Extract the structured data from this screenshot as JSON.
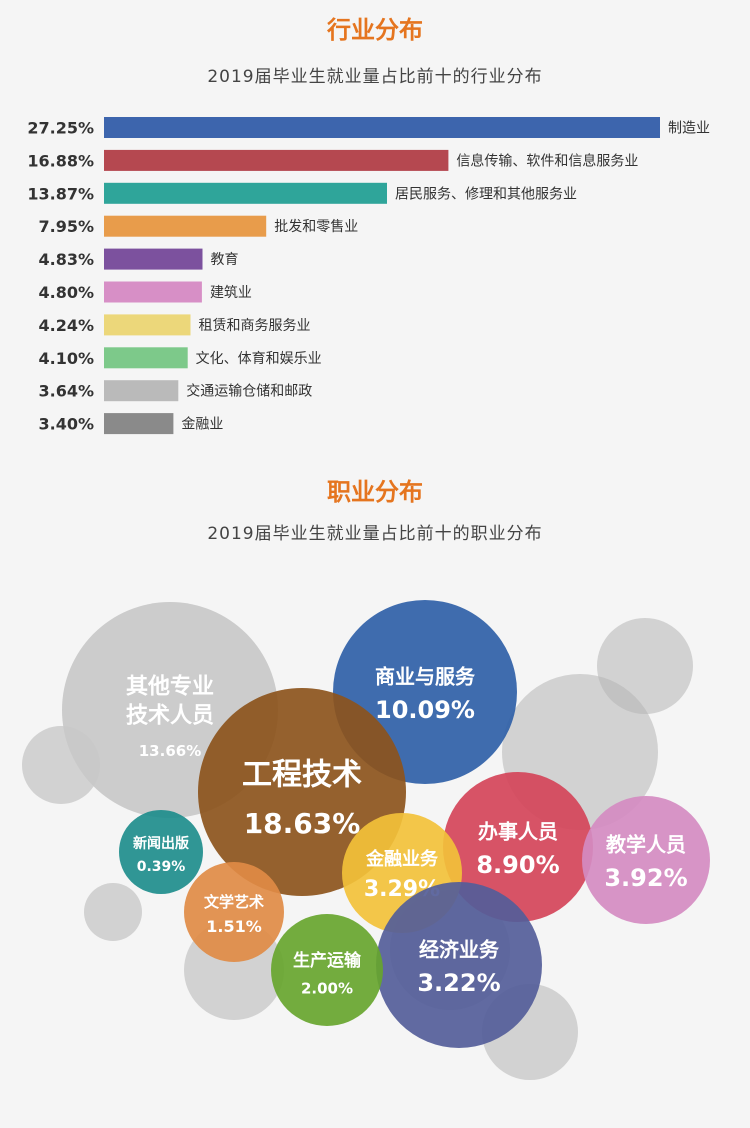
{
  "industry": {
    "title": "行业分布",
    "subtitle": "2019届毕业生就业量占比前十的行业分布"
  },
  "occupation": {
    "title": "职业分布",
    "subtitle": "2019届毕业生就业量占比前十的职业分布"
  },
  "chart_data": [
    {
      "type": "bar",
      "orientation": "horizontal",
      "categories": [
        "制造业",
        "信息传输、软件和信息服务业",
        "居民服务、修理和其他服务业",
        "批发和零售业",
        "教育",
        "建筑业",
        "租赁和商务服务业",
        "文化、体育和娱乐业",
        "交通运输仓储和邮政",
        "金融业"
      ],
      "values": [
        27.25,
        16.88,
        13.87,
        7.95,
        4.83,
        4.8,
        4.24,
        4.1,
        3.64,
        3.4
      ],
      "value_labels": [
        "27.25%",
        "16.88%",
        "13.87%",
        "7.95%",
        "4.83%",
        "4.80%",
        "4.24%",
        "4.10%",
        "3.64%",
        "3.40%"
      ],
      "colors": [
        "#3d65ad",
        "#b54850",
        "#2fa59a",
        "#e89c4b",
        "#7c519e",
        "#d78fc6",
        "#ecd77a",
        "#7dc98a",
        "#bababa",
        "#8a8a8a"
      ],
      "title": "2019届毕业生就业量占比前十的行业分布"
    },
    {
      "type": "bubble",
      "items": [
        {
          "label": "其他专业",
          "label2": "技术人员",
          "pct": "13.66%",
          "value": 13.66,
          "color": "#c8c8c8"
        },
        {
          "label": "商业与服务",
          "pct": "10.09%",
          "value": 10.09,
          "color": "#2f5fa7"
        },
        {
          "label": "工程技术",
          "pct": "18.63%",
          "value": 18.63,
          "color": "#8c541c"
        },
        {
          "label": "办事人员",
          "pct": "8.90%",
          "value": 8.9,
          "color": "#d44459"
        },
        {
          "label": "教学人员",
          "pct": "3.92%",
          "value": 3.92,
          "color": "#d48bc1"
        },
        {
          "label": "金融业务",
          "pct": "3.29%",
          "value": 3.29,
          "color": "#f2c13a"
        },
        {
          "label": "经济业务",
          "pct": "3.22%",
          "value": 3.22,
          "color": "#545d99"
        },
        {
          "label": "新闻出版",
          "pct": "0.39%",
          "value": 0.39,
          "color": "#1e8d8c"
        },
        {
          "label": "文学艺术",
          "pct": "1.51%",
          "value": 1.51,
          "color": "#e08b45"
        },
        {
          "label": "生产运输",
          "pct": "2.00%",
          "value": 2.0,
          "color": "#67a52e"
        }
      ],
      "title": "2019届毕业生就业量占比前十的职业分布"
    }
  ]
}
